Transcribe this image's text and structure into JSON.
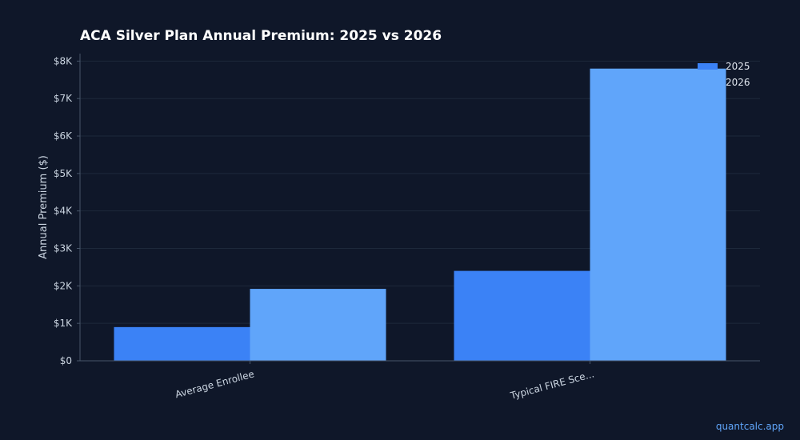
{
  "chart_data": {
    "type": "bar",
    "title": "ACA Silver Plan Annual Premium: 2025 vs 2026",
    "xlabel": "",
    "ylabel": "Annual Premium ($)",
    "categories": [
      "Average Enrollee",
      "Typical FIRE Sce..."
    ],
    "series": [
      {
        "name": "2025",
        "values": [
          900,
          2400
        ],
        "color": "#3b82f6"
      },
      {
        "name": "2026",
        "values": [
          1920,
          7800
        ],
        "color": "#60a5fa"
      }
    ],
    "ylim": [
      0,
      8200
    ],
    "yticks": [
      0,
      1000,
      2000,
      3000,
      4000,
      5000,
      6000,
      7000,
      8000
    ],
    "ytick_labels": [
      "$0",
      "$1K",
      "$2K",
      "$3K",
      "$4K",
      "$5K",
      "$6K",
      "$7K",
      "$8K"
    ],
    "grid": true,
    "legend_position": "top-right"
  },
  "watermark": "quantcalc.app",
  "colors": {
    "background": "#0f1729",
    "grid": "#1e293b",
    "axis": "#475569"
  }
}
